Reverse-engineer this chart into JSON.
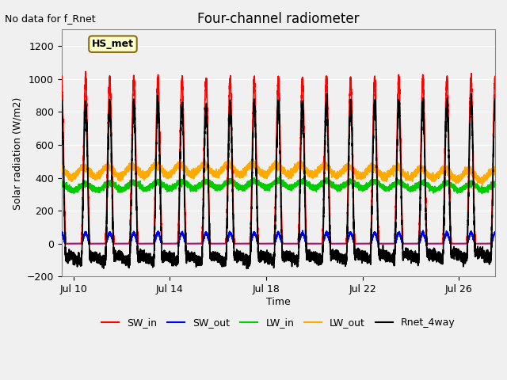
{
  "title": "Four-channel radiometer",
  "top_left_text": "No data for f_Rnet",
  "xlabel": "Time",
  "ylabel": "Solar radiation (W/m2)",
  "ylim": [
    -200,
    1300
  ],
  "yticks": [
    -200,
    0,
    200,
    400,
    600,
    800,
    1000,
    1200
  ],
  "xlim_start_day": 9.5,
  "xlim_end_day": 27.5,
  "xtick_days": [
    10,
    14,
    18,
    22,
    26
  ],
  "xtick_labels": [
    "Jul 10",
    "Jul 14",
    "Jul 18",
    "Jul 22",
    "Jul 26"
  ],
  "annotation_box": "HS_met",
  "background_color": "#f0f0f0",
  "plot_bg_color": "#ffffff",
  "grid_color": "#ffffff",
  "series": {
    "SW_in": {
      "color": "#ff0000",
      "lw": 1.2
    },
    "SW_out": {
      "color": "#0000ff",
      "lw": 1.2
    },
    "LW_in": {
      "color": "#00cc00",
      "lw": 1.2
    },
    "LW_out": {
      "color": "#ffaa00",
      "lw": 1.2
    },
    "Rnet_4way": {
      "color": "#000000",
      "lw": 1.2
    }
  },
  "legend_order": [
    "SW_in",
    "SW_out",
    "LW_in",
    "LW_out",
    "Rnet_4way"
  ],
  "n_days": 18,
  "start_day": 9.5
}
